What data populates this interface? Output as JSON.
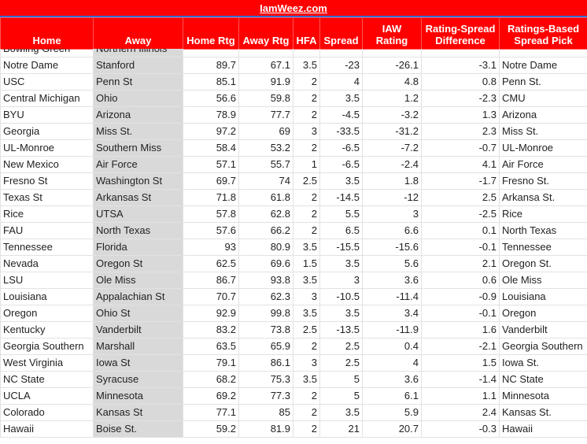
{
  "header": {
    "title": "IamWeez.com"
  },
  "table": {
    "columns": [
      "Home",
      "Away",
      "Home Rtg",
      "Away Rtg",
      "HFA",
      "Spread",
      "IAW Rating",
      "Rating-Spread Difference",
      "Ratings-Based Spread Pick"
    ],
    "rows": [
      [
        "Bowling Green",
        "Northern Illinois"
      ],
      [
        "Notre Dame",
        "Stanford",
        89.7,
        67.1,
        3.5,
        -23,
        -26.1,
        -3.1,
        "Notre Dame"
      ],
      [
        "USC",
        "Penn St",
        85.1,
        91.9,
        2,
        4,
        4.8,
        0.8,
        "Penn St."
      ],
      [
        "Central Michigan",
        "Ohio",
        56.6,
        59.8,
        2,
        3.5,
        1.2,
        -2.3,
        "CMU"
      ],
      [
        "BYU",
        "Arizona",
        78.9,
        77.7,
        2,
        -4.5,
        -3.2,
        1.3,
        "Arizona"
      ],
      [
        "Georgia",
        "Miss St.",
        97.2,
        69,
        3,
        -33.5,
        -31.2,
        2.3,
        "Miss St."
      ],
      [
        "UL-Monroe",
        "Southern Miss",
        58.4,
        53.2,
        2,
        -6.5,
        -7.2,
        -0.7,
        "UL-Monroe"
      ],
      [
        "New Mexico",
        "Air Force",
        57.1,
        55.7,
        1,
        -6.5,
        -2.4,
        4.1,
        "Air Force"
      ],
      [
        "Fresno St",
        "Washington St",
        69.7,
        74,
        2.5,
        3.5,
        1.8,
        -1.7,
        "Fresno St."
      ],
      [
        "Texas St",
        "Arkansas St",
        71.8,
        61.8,
        2,
        -14.5,
        -12,
        2.5,
        "Arkansa St."
      ],
      [
        "Rice",
        "UTSA",
        57.8,
        62.8,
        2,
        5.5,
        3,
        -2.5,
        "Rice"
      ],
      [
        "FAU",
        "North Texas",
        57.6,
        66.2,
        2,
        6.5,
        6.6,
        0.1,
        "North Texas"
      ],
      [
        "Tennessee",
        "Florida",
        93,
        80.9,
        3.5,
        -15.5,
        -15.6,
        -0.1,
        "Tennessee"
      ],
      [
        "Nevada",
        "Oregon St",
        62.5,
        69.6,
        1.5,
        3.5,
        5.6,
        2.1,
        "Oregon St."
      ],
      [
        "LSU",
        "Ole Miss",
        86.7,
        93.8,
        3.5,
        3,
        3.6,
        0.6,
        "Ole Miss"
      ],
      [
        "Louisiana",
        "Appalachian St",
        70.7,
        62.3,
        3,
        -10.5,
        -11.4,
        -0.9,
        "Louisiana"
      ],
      [
        "Oregon",
        "Ohio St",
        92.9,
        99.8,
        3.5,
        3.5,
        3.4,
        -0.1,
        "Oregon"
      ],
      [
        "Kentucky",
        "Vanderbilt",
        83.2,
        73.8,
        2.5,
        -13.5,
        -11.9,
        1.6,
        "Vanderbilt"
      ],
      [
        "Georgia Southern",
        "Marshall",
        63.5,
        65.9,
        2,
        2.5,
        0.4,
        -2.1,
        "Georgia Southern"
      ],
      [
        "West Virginia",
        "Iowa St",
        79.1,
        86.1,
        3,
        2.5,
        4,
        1.5,
        "Iowa St."
      ],
      [
        "NC State",
        "Syracuse",
        68.2,
        75.3,
        3.5,
        5,
        3.6,
        -1.4,
        "NC State"
      ],
      [
        "UCLA",
        "Minnesota",
        69.2,
        77.3,
        2,
        5,
        6.1,
        1.1,
        "Minnesota"
      ],
      [
        "Colorado",
        "Kansas St",
        77.1,
        85,
        2,
        3.5,
        5.9,
        2.4,
        "Kansas St."
      ],
      [
        "Hawaii",
        "Boise St.",
        59.2,
        81.9,
        2,
        21,
        20.7,
        -0.3,
        "Hawaii"
      ]
    ]
  }
}
